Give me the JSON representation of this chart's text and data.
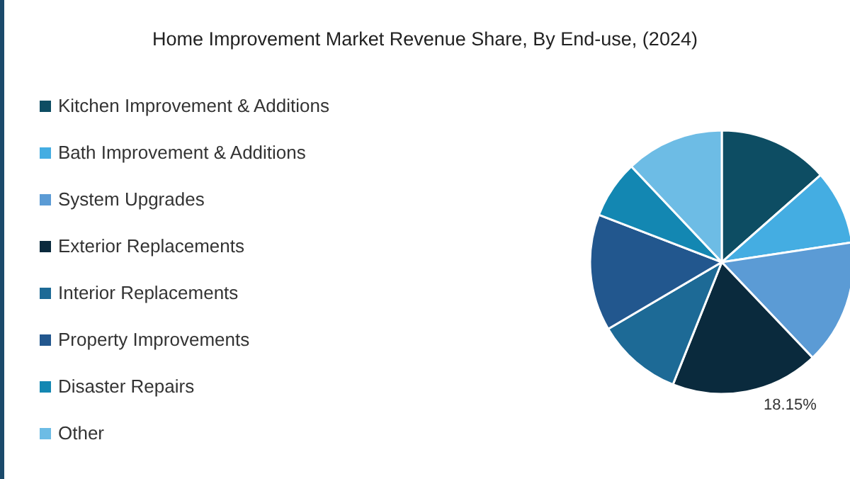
{
  "chart_data": {
    "type": "pie",
    "title": "Home Improvement Market Revenue Share, By End-use, (2024)",
    "categories": [
      "Kitchen Improvement & Additions",
      "Bath Improvement & Additions",
      "System Upgrades",
      "Exterior Replacements",
      "Interior Replacements",
      "Property Improvements",
      "Disaster Repairs",
      "Other"
    ],
    "values": [
      13.5,
      9.1,
      15.3,
      18.15,
      10.5,
      14.3,
      7.1,
      12.05
    ],
    "colors": [
      "#0d4d63",
      "#44ade2",
      "#5b9bd5",
      "#0a2a3d",
      "#1d6a96",
      "#22578e",
      "#1387b2",
      "#6dbce5"
    ],
    "value_labels": [
      null,
      null,
      null,
      "18.15%",
      null,
      null,
      null,
      null
    ],
    "legend": "left"
  }
}
